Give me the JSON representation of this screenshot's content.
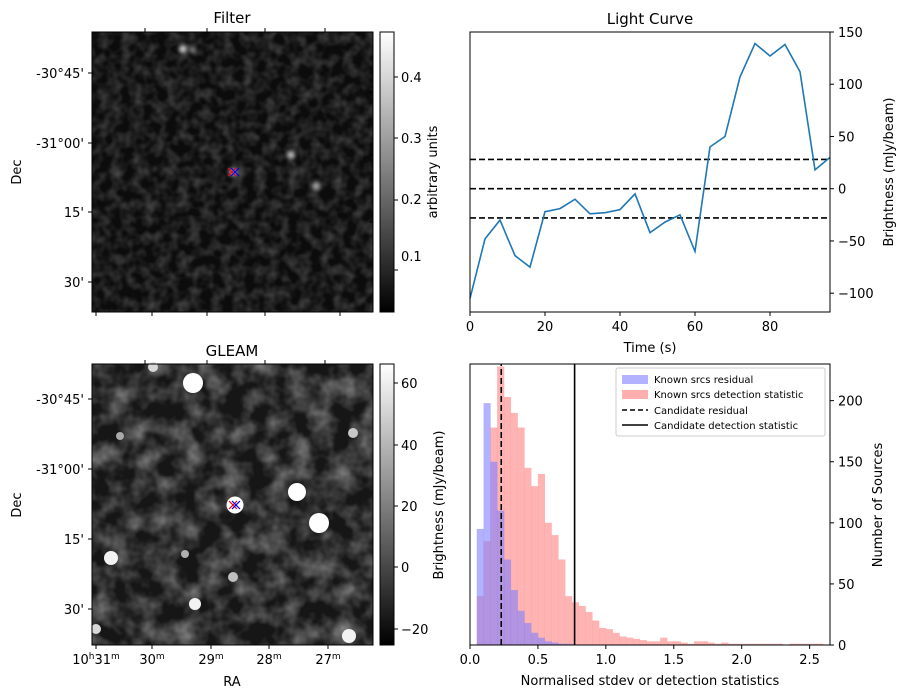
{
  "panels": {
    "filter": {
      "title": "Filter",
      "ylabel": "Dec",
      "yticks": [
        "-30°45'",
        "-31°00'",
        "15'",
        "30'"
      ],
      "colorbar": {
        "label": "arbitrary units",
        "ticks": [
          "0.1",
          "0.2",
          "0.3",
          "0.4"
        ],
        "range": [
          0.0,
          0.48
        ]
      },
      "colormap": "gray"
    },
    "gleam": {
      "title": "GLEAM",
      "ylabel": "Dec",
      "xlabel": "RA",
      "yticks": [
        "-30°45'",
        "-31°00'",
        "15'",
        "30'"
      ],
      "xticks": [
        {
          "main": "10",
          "sup1": "h",
          "num": "31",
          "sup2": "m"
        },
        {
          "main": "",
          "sup1": "",
          "num": "30",
          "sup2": "m"
        },
        {
          "main": "",
          "sup1": "",
          "num": "29",
          "sup2": "m"
        },
        {
          "main": "",
          "sup1": "",
          "num": "28",
          "sup2": "m"
        },
        {
          "main": "",
          "sup1": "",
          "num": "27",
          "sup2": "m"
        }
      ],
      "colorbar": {
        "label": "Brightness (mJy/beam)",
        "ticks": [
          "60",
          "40",
          "20",
          "0",
          "−20"
        ],
        "range": [
          -25,
          66
        ]
      },
      "colormap": "gray"
    },
    "markers": {
      "candidate_colors": [
        "#ff0000",
        "#0000ff"
      ]
    }
  },
  "chart_data": [
    {
      "type": "line",
      "title": "Light Curve",
      "xlabel": "Time (s)",
      "ylabel": "Brightness (mJy/beam)",
      "xlim": [
        0,
        96
      ],
      "ylim": [
        -118,
        150
      ],
      "xticks": [
        "0",
        "20",
        "40",
        "60",
        "80"
      ],
      "yticks": [
        "150",
        "100",
        "50",
        "0",
        "−50",
        "−100"
      ],
      "color": "#1f77b4",
      "x": [
        0,
        4,
        8,
        12,
        16,
        20,
        24,
        28,
        32,
        36,
        40,
        44,
        48,
        52,
        56,
        60,
        64,
        68,
        72,
        76,
        80,
        84,
        88,
        92,
        96
      ],
      "y": [
        -105,
        -48,
        -30,
        -64,
        -75,
        -22,
        -19,
        -10,
        -24,
        -23,
        -20,
        -5,
        -42,
        -32,
        -25,
        -60,
        40,
        50,
        107,
        139,
        127,
        138,
        112,
        18,
        30
      ],
      "hlines": [
        28,
        0,
        -28
      ]
    },
    {
      "type": "histogram",
      "xlabel": "Normalised stdev or detection statistics",
      "ylabel_left": "Brightness (mJy/beam)",
      "ylabel_right": "Number of Sources",
      "xlim": [
        0.0,
        2.65
      ],
      "ylim": [
        0,
        230
      ],
      "xticks": [
        "0.0",
        "0.5",
        "1.0",
        "1.5",
        "2.0",
        "2.5"
      ],
      "yticks": [
        "0",
        "50",
        "100",
        "150",
        "200"
      ],
      "legend": [
        "Known srcs residual",
        "Known srcs detection statistic",
        "Candidate residual",
        "Candidate detection statistic"
      ],
      "legend_location": "upper right",
      "bin_width": 0.05,
      "series": [
        {
          "name": "Known srcs residual",
          "color": "#7f7fff",
          "bins_start": 0.0,
          "counts": [
            0,
            95,
            198,
            150,
            110,
            70,
            45,
            28,
            18,
            10,
            6,
            3,
            2,
            1,
            1,
            0
          ]
        },
        {
          "name": "Known srcs detection statistic",
          "color": "#ff8c8c",
          "bins_start": 0.0,
          "counts": [
            0,
            40,
            85,
            178,
            228,
            203,
            190,
            178,
            145,
            130,
            140,
            100,
            90,
            70,
            40,
            35,
            32,
            27,
            20,
            14,
            13,
            10,
            7,
            6,
            5,
            4,
            3,
            3,
            6,
            3,
            3,
            2,
            1,
            3,
            3,
            2,
            1,
            2,
            1,
            1,
            1,
            1,
            1,
            1,
            1,
            1,
            0,
            1,
            1,
            1,
            1,
            1
          ]
        }
      ],
      "vlines": [
        {
          "name": "Candidate residual",
          "x": 0.23,
          "style": "dashed"
        },
        {
          "name": "Candidate detection statistic",
          "x": 0.77,
          "style": "solid"
        }
      ]
    }
  ]
}
